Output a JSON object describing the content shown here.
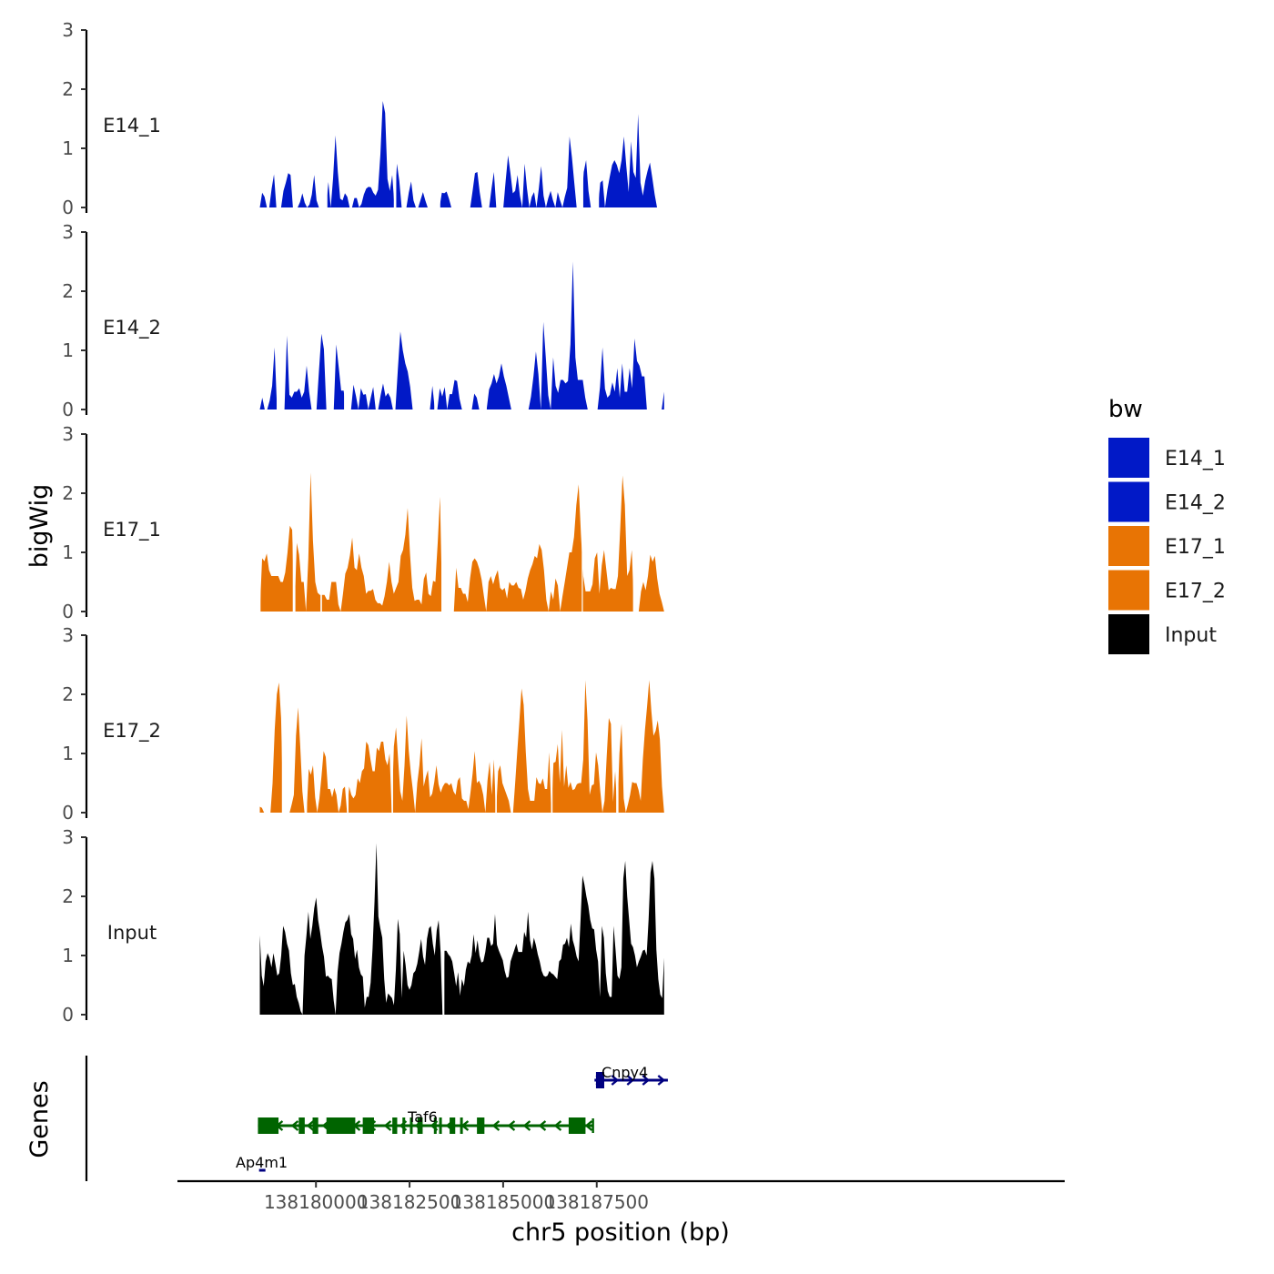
{
  "chart_data": {
    "type": "area",
    "ylabel": "bigWig",
    "xlabel": "chr5 position (bp)",
    "genes_label": "Genes",
    "ylim": [
      0,
      3
    ],
    "yticks": [
      "0",
      "1",
      "2",
      "3"
    ],
    "xlim": [
      138176300,
      138200000
    ],
    "xticks": [
      {
        "value": 138180000,
        "label": "138180000"
      },
      {
        "value": 138182500,
        "label": "138182500"
      },
      {
        "value": 138185000,
        "label": "138185000"
      },
      {
        "value": 138187500,
        "label": "138187500"
      }
    ],
    "track_x_range": [
      138178500,
      138189300
    ],
    "legend": {
      "title": "bw",
      "entries": [
        {
          "label": "E14_1",
          "color": "#0119C7"
        },
        {
          "label": "E14_2",
          "color": "#0119C7"
        },
        {
          "label": "E17_1",
          "color": "#E87404"
        },
        {
          "label": "E17_2",
          "color": "#E87404"
        },
        {
          "label": "Input",
          "color": "#000000"
        }
      ]
    },
    "series": [
      {
        "name": "E14_1",
        "color": "#0119C7",
        "values": [
          0,
          0.25,
          0.18,
          0,
          0,
          0.32,
          0.56,
          0,
          0,
          0,
          0.28,
          0.42,
          0.58,
          0.55,
          0,
          0,
          0,
          0.09,
          0.24,
          0.08,
          0,
          0.05,
          0.22,
          0.55,
          0.12,
          0,
          0,
          0.16,
          0.68,
          0.43,
          0,
          0.5,
          1.22,
          0.6,
          0.15,
          0.12,
          0.24,
          0.18,
          0,
          0,
          0.16,
          0.16,
          0,
          0.06,
          0.22,
          0.32,
          0.35,
          0.34,
          0.25,
          0.2,
          0.3,
          0.9,
          1.8,
          1.6,
          0.48,
          0.28,
          0.55,
          1.0,
          0.74,
          0.45,
          0,
          0,
          0,
          0.25,
          0.44,
          0.12,
          0,
          0,
          0.13,
          0.26,
          0.12,
          0,
          0,
          0,
          0,
          0,
          0.16,
          0.25,
          0.24,
          0.27,
          0.15,
          0,
          0,
          0,
          0,
          0,
          0,
          0,
          0,
          0,
          0.28,
          0.58,
          0.6,
          0.26,
          0,
          0,
          0,
          0,
          0.32,
          0.6,
          0,
          0,
          0,
          0,
          0.46,
          0.88,
          0.58,
          0.24,
          0.28,
          0.55,
          0.2,
          0,
          0.74,
          0.32,
          0,
          0.18,
          0.26,
          0,
          0.32,
          0.7,
          0.2,
          0,
          0.16,
          0.28,
          0.12,
          0,
          0.26,
          0.12,
          0,
          0.18,
          0.33,
          1.2,
          0.85,
          0.42,
          0,
          0,
          0,
          0.6,
          0.8,
          0.28,
          0,
          0,
          0,
          0,
          0.42,
          0.46,
          0,
          0.3,
          0.52,
          0.72,
          0.8,
          0.72,
          0.58,
          0.8,
          1.2,
          0.7,
          0.26,
          1.12,
          0.6,
          0.5,
          1.58,
          0.42,
          0.2,
          0.45,
          0.62,
          0.76,
          0.5,
          0.22,
          0,
          0.18,
          0.18,
          0
        ]
      },
      {
        "name": "E14_2",
        "color": "#0119C7",
        "values": [
          0,
          0.2,
          0,
          0,
          0.15,
          0.4,
          1.05,
          0.68,
          0,
          0,
          0,
          1.25,
          0.25,
          0.2,
          0.3,
          0.3,
          0.36,
          0.2,
          0.3,
          0.74,
          0.3,
          0,
          0,
          0,
          0.66,
          1.28,
          1.02,
          0,
          0,
          0,
          0,
          1.1,
          0.72,
          0.32,
          0.32,
          0.36,
          0,
          0,
          0.42,
          0.23,
          0,
          0.36,
          0.25,
          0.26,
          0,
          0.2,
          0.38,
          0,
          0,
          0.24,
          0.44,
          0.22,
          0.28,
          0.2,
          0,
          0,
          0.68,
          1.32,
          1.0,
          0.78,
          0.64,
          0.38,
          0,
          0,
          0,
          0,
          0,
          0,
          0,
          0,
          0.4,
          0.1,
          0,
          0.36,
          0.22,
          0.38,
          0,
          0.26,
          0.26,
          0.5,
          0.48,
          0.18,
          0,
          0,
          0,
          0,
          0,
          0.27,
          0.2,
          0,
          0,
          0,
          0,
          0.34,
          0.44,
          0.6,
          0.44,
          0.56,
          0.78,
          0.56,
          0.4,
          0.2,
          0,
          0,
          0,
          0,
          0,
          0,
          0,
          0,
          0.22,
          0.56,
          0.98,
          0.6,
          0,
          1.48,
          0.88,
          0.24,
          0,
          0.88,
          0.4,
          0.28,
          0.5,
          0.5,
          0.44,
          0.48,
          1.1,
          2.5,
          0.88,
          0.5,
          0.5,
          0.5,
          0.2,
          0,
          0,
          0,
          0,
          0,
          0.38,
          1.05,
          0.35,
          0.2,
          0.25,
          0.46,
          0.3,
          0.7,
          0.2,
          0.78,
          0.3,
          0.3,
          0.7,
          0.36,
          1.2,
          0.82,
          0.74,
          0.56,
          0.56,
          0,
          0,
          0,
          0,
          0,
          0,
          0,
          0.3
        ]
      },
      {
        "name": "E17_1",
        "color": "#E87404",
        "values": [
          1.36,
          0.9,
          0.85,
          0.98,
          0.7,
          0.6,
          0.6,
          0.6,
          0.6,
          0.5,
          0.5,
          0.66,
          1.0,
          1.45,
          1.38,
          1.2,
          1.16,
          0.96,
          0.5,
          0.5,
          0,
          0.9,
          2.35,
          1.2,
          0.5,
          0.32,
          0.28,
          0.28,
          0.28,
          0.2,
          0.2,
          0.5,
          0.5,
          0.5,
          0.12,
          0,
          0.3,
          0.64,
          0.74,
          0.95,
          1.25,
          0.74,
          0.7,
          0.98,
          0.74,
          0.6,
          0.3,
          0.35,
          0.35,
          0.38,
          0.2,
          0.14,
          0.14,
          0.1,
          0.26,
          0.5,
          0.84,
          0.5,
          0.3,
          0.4,
          0.5,
          0.94,
          1.04,
          1.3,
          1.75,
          0.98,
          0.4,
          0.18,
          0.2,
          0.2,
          0.12,
          0.55,
          0.66,
          0.3,
          0.26,
          0.52,
          0.5,
          1.16,
          1.94,
          0.9,
          0.3,
          0,
          0,
          0,
          0,
          0.74,
          0.4,
          0.4,
          0.3,
          0.3,
          0.16,
          0.56,
          0.84,
          0.9,
          0.84,
          0.72,
          0.54,
          0.26,
          0,
          0.5,
          0.6,
          0.46,
          0.6,
          0.7,
          0.4,
          0.36,
          0.4,
          0.22,
          0.5,
          0.44,
          0.44,
          0.5,
          0.4,
          0.38,
          0.2,
          0.35,
          0.56,
          0.7,
          0.8,
          0.94,
          0.9,
          1.14,
          1.04,
          0.7,
          0.2,
          0,
          0.34,
          0.2,
          0.56,
          0.44,
          0,
          0.26,
          0.5,
          0.75,
          1.0,
          1.0,
          1.26,
          1.8,
          2.15,
          1.3,
          0.6,
          0.34,
          0.34,
          0.34,
          0.46,
          0.9,
          1.0,
          0.3,
          0.78,
          1.04,
          0.7,
          0.36,
          0.4,
          0.38,
          0.38,
          0.6,
          1.4,
          2.3,
          1.8,
          0.6,
          0.7,
          1.04,
          0.9,
          0,
          0,
          0.34,
          0.5,
          0.36,
          0.6,
          0.96,
          0.84,
          0.94,
          0.56,
          0.3,
          0.16,
          0
        ]
      },
      {
        "name": "E17_2",
        "color": "#E87404",
        "values": [
          0.1,
          0.08,
          0,
          0,
          0,
          0,
          0.5,
          1.4,
          2.0,
          2.2,
          1.6,
          0.36,
          0,
          0,
          0,
          0.14,
          0.3,
          1.3,
          1.78,
          1.12,
          0.36,
          0,
          0.5,
          0.74,
          0.64,
          0.8,
          0.26,
          0,
          0.24,
          0.62,
          1.04,
          0.94,
          0.4,
          0.4,
          0.26,
          0.42,
          0.3,
          0,
          0.12,
          0.4,
          0.44,
          0.44,
          0.44,
          0.3,
          0.24,
          0.3,
          0.58,
          0.5,
          0.7,
          0.75,
          1.2,
          1.14,
          0.9,
          0.7,
          0.7,
          1.1,
          1.04,
          1.2,
          1.2,
          0.9,
          0.8,
          1.0,
          0.9,
          1.12,
          1.44,
          0.9,
          0.36,
          0.2,
          0.8,
          1.64,
          1.04,
          0.66,
          0.36,
          0,
          0.5,
          0.8,
          1.26,
          0.44,
          0.6,
          0.72,
          0.26,
          0.32,
          0.52,
          0.8,
          0.48,
          0.34,
          0.44,
          0.5,
          0.5,
          0.46,
          0.5,
          0.36,
          0.3,
          0.54,
          0.6,
          0.24,
          0.2,
          0.2,
          0.06,
          0.34,
          0.66,
          1.04,
          0.5,
          0.54,
          0.46,
          0.3,
          0,
          0.54,
          0.86,
          0.3,
          0.9,
          1.38,
          0.7,
          0.8,
          0.5,
          0.4,
          0.3,
          0.2,
          0,
          0,
          0.5,
          1.04,
          1.56,
          2.1,
          1.82,
          1.02,
          0.4,
          0.2,
          0.2,
          0.2,
          0.6,
          0.5,
          0.48,
          0.58,
          0.4,
          0.4,
          1.02,
          1.06,
          0.84,
          0.86,
          1.16,
          0.5,
          1.4,
          0.44,
          0.8,
          0.42,
          0.52,
          0.38,
          0.4,
          0.48,
          0.5,
          0.5,
          0.9,
          2.24,
          1.56,
          0.3,
          0.46,
          0.48,
          1.02,
          0.8,
          0.36,
          0,
          0.2,
          0.94,
          1.6,
          1.5,
          0.18,
          0.7,
          1.6,
          1.0,
          1.5,
          0.24,
          0,
          0.14,
          0.3,
          0.52,
          0.5,
          0.5,
          0.38,
          0.2,
          0.9,
          1.4,
          1.8,
          2.24,
          1.72,
          1.3,
          1.38,
          1.56,
          1.24,
          0.44,
          0
        ]
      },
      {
        "name": "Input",
        "color": "#000000",
        "values": [
          1.34,
          0.66,
          0.48,
          0.9,
          1.04,
          0.96,
          0.8,
          1.04,
          0.86,
          0.66,
          0.7,
          1.0,
          1.5,
          1.4,
          1.2,
          1.08,
          0.7,
          0.5,
          0.52,
          0.3,
          0.2,
          0.06,
          0,
          1.0,
          1.34,
          1.74,
          1.28,
          1.5,
          1.8,
          1.98,
          1.6,
          1.4,
          1.16,
          0.98,
          0.64,
          0.66,
          0.62,
          0.6,
          0.24,
          0,
          0.72,
          1.04,
          1.2,
          1.4,
          1.56,
          1.6,
          1.7,
          1.36,
          1.28,
          0.94,
          1.1,
          0.8,
          0.68,
          0.64,
          0.12,
          0.3,
          0.3,
          0.54,
          1.12,
          1.9,
          2.9,
          1.66,
          1.46,
          1.3,
          0.6,
          0.2,
          0.36,
          0.32,
          0.28,
          0.16,
          0.76,
          1.62,
          1.36,
          0.28,
          1.08,
          0.84,
          0.5,
          0.42,
          0.5,
          0.7,
          0.74,
          0.86,
          1.06,
          1.28,
          0.98,
          0.84,
          1.28,
          1.46,
          1.5,
          1.2,
          1.0,
          1.42,
          1.6,
          1.06,
          0.82,
          1.08,
          1.08,
          1.02,
          0.98,
          0.9,
          0.7,
          0.48,
          0.72,
          0.32,
          0.6,
          0.48,
          0.76,
          0.9,
          0.86,
          1.0,
          1.36,
          1.04,
          1.26,
          1.0,
          0.88,
          0.9,
          1.06,
          1.3,
          1.3,
          1.16,
          1.2,
          1.7,
          1.18,
          1.08,
          1.0,
          0.92,
          0.74,
          0.62,
          0.64,
          0.9,
          1.0,
          1.1,
          1.2,
          1.06,
          1.06,
          1.06,
          1.4,
          1.3,
          1.74,
          1.26,
          1.1,
          1.3,
          1.18,
          1.02,
          0.9,
          0.74,
          0.66,
          0.64,
          0.66,
          0.74,
          0.7,
          0.68,
          0.64,
          0.6,
          0.9,
          0.94,
          1.18,
          1.2,
          1.3,
          1.14,
          1.54,
          1.26,
          1.14,
          0.98,
          0.9,
          1.6,
          2.35,
          2.2,
          2.0,
          1.84,
          1.6,
          1.46,
          1.44,
          1.1,
          0.9,
          0.3,
          1.5,
          1.3,
          0.7,
          0.4,
          0.3,
          0.3,
          1.5,
          1.1,
          0.66,
          0.6,
          0.8,
          2.3,
          2.6,
          2.0,
          1.6,
          1.2,
          1.14,
          1.0,
          0.8,
          0.9,
          0.98,
          1.08,
          1.1,
          1.0,
          1.6,
          2.4,
          2.6,
          2.3,
          1.1,
          0.6,
          0.34,
          0.28,
          0.96
        ]
      }
    ],
    "gaps": {
      "E14_1": [
        [
          138180200,
          138180305
        ],
        [
          138182080,
          138182145
        ],
        [
          138183020,
          138183320
        ],
        [
          138183790,
          138183900
        ],
        [
          138187000,
          138187140
        ],
        [
          138187450,
          138187560
        ],
        [
          138189110,
          138189240
        ]
      ],
      "E14_2": [
        [
          138178950,
          138179010
        ],
        [
          138179900,
          138179990
        ],
        [
          138180750,
          138180840
        ],
        [
          138183160,
          138183240
        ],
        [
          138184450,
          138184560
        ],
        [
          138185400,
          138185640
        ],
        [
          138187290,
          138187420
        ]
      ],
      "E17_1": [
        [
          138178500,
          138178520
        ],
        [
          138179380,
          138179450
        ],
        [
          138180120,
          138180160
        ],
        [
          138183350,
          138183560
        ],
        [
          138187100,
          138187130
        ],
        [
          138188470,
          138188540
        ]
      ],
      "E17_2": [
        [
          138178690,
          138178730
        ],
        [
          138179090,
          138179160
        ],
        [
          138179720,
          138179760
        ],
        [
          138180830,
          138180870
        ],
        [
          138182020,
          138182060
        ],
        [
          138184790,
          138184830
        ],
        [
          138186280,
          138186320
        ],
        [
          138188020,
          138188080
        ]
      ],
      "Input": [
        [
          138183380,
          138183430
        ]
      ]
    },
    "genes": [
      {
        "name": "Cnpy4",
        "strand": "+",
        "color": "#000080",
        "start": 138187440,
        "end": 138189400,
        "exons": [
          [
            138187480,
            138187700
          ]
        ],
        "label_pos": 138188250
      },
      {
        "name": "Taf6",
        "strand": "-",
        "color": "#006400",
        "start": 138178450,
        "end": 138187400,
        "exons": [
          [
            138178450,
            138179000
          ],
          [
            138179540,
            138179700
          ],
          [
            138179910,
            138180060
          ],
          [
            138180280,
            138181050
          ],
          [
            138181250,
            138181550
          ],
          [
            138182040,
            138182170
          ],
          [
            138182310,
            138182380
          ],
          [
            138182510,
            138182580
          ],
          [
            138182710,
            138182850
          ],
          [
            138183150,
            138183200
          ],
          [
            138183290,
            138183350
          ],
          [
            138183570,
            138183720
          ],
          [
            138183850,
            138183920
          ],
          [
            138184300,
            138184500
          ],
          [
            138186750,
            138187200
          ]
        ],
        "label_pos": 138182850
      },
      {
        "name": "Ap4m1",
        "strand": "+",
        "color": "#000080",
        "start": 138178480,
        "end": 138178650,
        "exons": [],
        "label_pos": 138178550
      }
    ]
  }
}
